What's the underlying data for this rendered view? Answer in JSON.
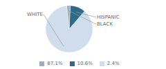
{
  "chart_data": {
    "type": "pie",
    "categories": [
      "WHITE",
      "HISPANIC",
      "BLACK"
    ],
    "values": [
      87.1,
      10.6,
      2.4
    ],
    "value_labels": [
      "87.1%",
      "10.6%",
      "2.4%"
    ],
    "colors": [
      "#cfdded",
      "#2d6b8a",
      "#9bafc0"
    ],
    "legend": "bottom"
  }
}
